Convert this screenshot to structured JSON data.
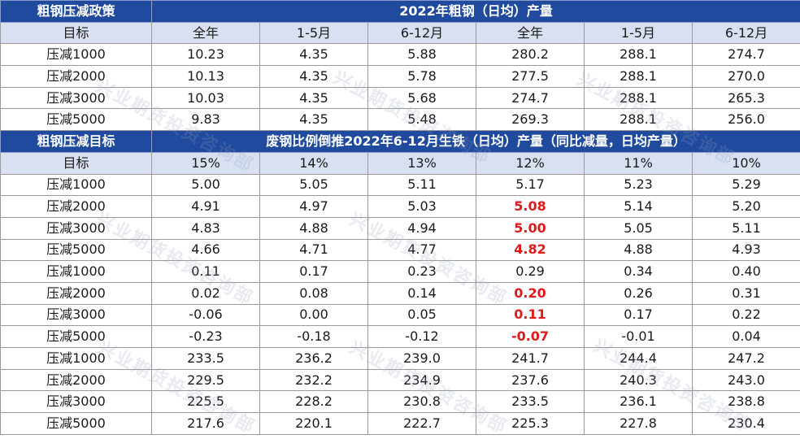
{
  "section1": {
    "left_title": "粗钢压减政策",
    "right_title": "2022年粗钢（日均）产量",
    "headers": [
      "目标",
      "全年",
      "1-5月",
      "6-12月",
      "全年",
      "1-5月",
      "6-12月"
    ],
    "rows": [
      [
        "压减1000",
        "10.23",
        "4.35",
        "5.88",
        "280.2",
        "288.1",
        "274.7"
      ],
      [
        "压减2000",
        "10.13",
        "4.35",
        "5.78",
        "277.5",
        "288.1",
        "270.0"
      ],
      [
        "压减3000",
        "10.03",
        "4.35",
        "5.68",
        "274.7",
        "288.1",
        "265.3"
      ],
      [
        "压减5000",
        "9.83",
        "4.35",
        "5.48",
        "269.3",
        "288.1",
        "256.0"
      ]
    ]
  },
  "section2": {
    "left_title": "粗钢压减目标",
    "right_title": "废钢比例倒推2022年6-12月生铁（日均）产量（同比减量，日均产量）",
    "headers": [
      "目标",
      "15%",
      "14%",
      "13%",
      "12%",
      "11%",
      "10%"
    ],
    "rows": [
      [
        "压减1000",
        "5.00",
        "5.05",
        "5.11",
        "5.17",
        "5.23",
        "5.29"
      ],
      [
        "压减2000",
        "4.91",
        "4.97",
        "5.03",
        "5.08",
        "5.14",
        "5.20"
      ],
      [
        "压减3000",
        "4.83",
        "4.88",
        "4.94",
        "5.00",
        "5.05",
        "5.11"
      ],
      [
        "压减5000",
        "4.66",
        "4.71",
        "4.77",
        "4.82",
        "4.88",
        "4.93"
      ],
      [
        "压减1000",
        "0.11",
        "0.17",
        "0.23",
        "0.29",
        "0.34",
        "0.40"
      ],
      [
        "压减2000",
        "0.02",
        "0.08",
        "0.14",
        "0.20",
        "0.26",
        "0.31"
      ],
      [
        "压减3000",
        "-0.06",
        "0.00",
        "0.05",
        "0.11",
        "0.17",
        "0.22"
      ],
      [
        "压减5000",
        "-0.23",
        "-0.18",
        "-0.12",
        "-0.07",
        "-0.01",
        "0.04"
      ],
      [
        "压减1000",
        "233.5",
        "236.2",
        "239.0",
        "241.7",
        "244.4",
        "247.2"
      ],
      [
        "压减2000",
        "229.5",
        "232.2",
        "234.9",
        "237.6",
        "240.3",
        "243.0"
      ],
      [
        "压减3000",
        "225.5",
        "228.2",
        "230.8",
        "233.5",
        "236.1",
        "238.8"
      ],
      [
        "压减5000",
        "217.6",
        "220.1",
        "222.7",
        "225.3",
        "227.8",
        "230.4"
      ]
    ],
    "highlight_red": [
      [
        1,
        4
      ],
      [
        2,
        4
      ],
      [
        3,
        4
      ],
      [
        5,
        4
      ],
      [
        6,
        4
      ],
      [
        7,
        4
      ]
    ]
  },
  "watermark": "兴业期货投资咨询部"
}
